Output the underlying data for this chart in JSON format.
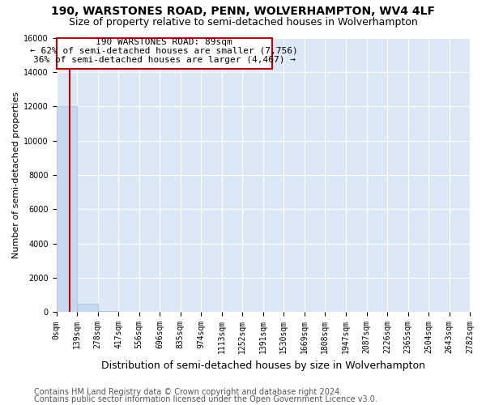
{
  "title": "190, WARSTONES ROAD, PENN, WOLVERHAMPTON, WV4 4LF",
  "subtitle": "Size of property relative to semi-detached houses in Wolverhampton",
  "xlabel": "Distribution of semi-detached houses by size in Wolverhampton",
  "ylabel": "Number of semi-detached properties",
  "footnote1": "Contains HM Land Registry data © Crown copyright and database right 2024.",
  "footnote2": "Contains public sector information licensed under the Open Government Licence v3.0.",
  "property_label": "190 WARSTONES ROAD: 89sqm",
  "pct_smaller": 62,
  "count_smaller": 7756,
  "pct_larger": 36,
  "count_larger": 4467,
  "bin_edges": [
    0,
    139,
    278,
    417,
    556,
    696,
    835,
    974,
    1113,
    1252,
    1391,
    1530,
    1669,
    1808,
    1947,
    2087,
    2226,
    2365,
    2504,
    2643,
    2782
  ],
  "bar_heights": [
    12000,
    500,
    50,
    20,
    10,
    5,
    5,
    3,
    3,
    2,
    2,
    2,
    1,
    1,
    1,
    1,
    1,
    0,
    0,
    0
  ],
  "bar_color": "#c5d8ee",
  "bar_edge_color": "#9bbcd8",
  "vline_color": "#cc0000",
  "vline_x": 89,
  "box_edge_color": "#cc0000",
  "ylim": [
    0,
    16000
  ],
  "yticks": [
    0,
    2000,
    4000,
    6000,
    8000,
    10000,
    12000,
    14000,
    16000
  ],
  "xlim": [
    0,
    2782
  ],
  "background_color": "#dce8f5",
  "grid_color": "#ffffff",
  "title_fontsize": 10,
  "subtitle_fontsize": 9,
  "ylabel_fontsize": 8,
  "xlabel_fontsize": 9,
  "tick_fontsize": 7,
  "annotation_fontsize": 8,
  "footnote_fontsize": 7
}
